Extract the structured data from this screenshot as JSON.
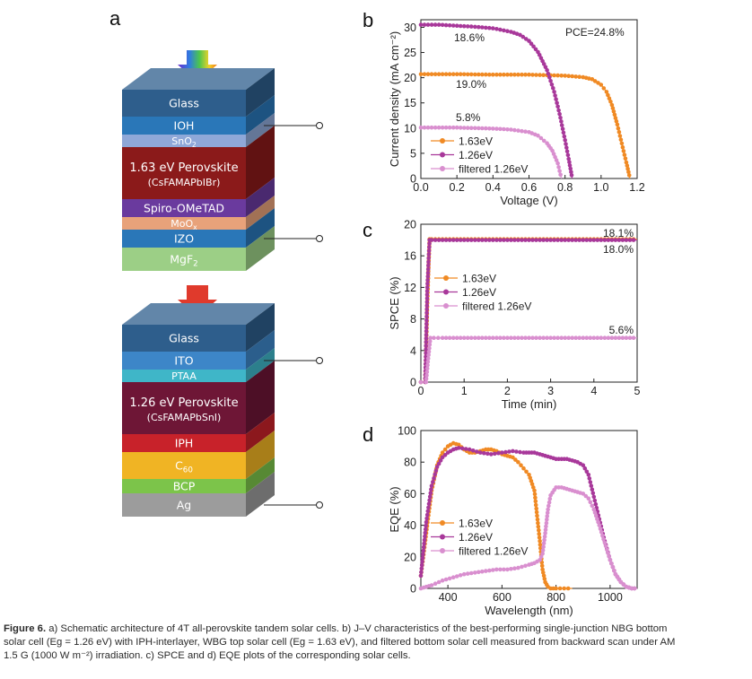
{
  "panels": {
    "a": "a",
    "b": "b",
    "c": "c",
    "d": "d"
  },
  "schematic": {
    "top_stack": [
      {
        "label": "Glass",
        "color": "#2e5e8c"
      },
      {
        "label": "IOH",
        "color": "#2a77b8"
      },
      {
        "label": "SnO",
        "sub": "2",
        "color": "#8fa8d8"
      },
      {
        "label": "1.63 eV Perovskite",
        "label2": "(CsFAMAPbIBr)",
        "color": "#8b1a1a"
      },
      {
        "label": "Spiro-OMeTAD",
        "color": "#6a3a9e"
      },
      {
        "label": "MoO",
        "sub": "x",
        "color": "#e8a27a"
      },
      {
        "label": "IZO",
        "color": "#2a77b8"
      },
      {
        "label": "MgF",
        "sub": "2",
        "color": "#9ccf86"
      }
    ],
    "bottom_stack": [
      {
        "label": "Glass",
        "color": "#2e5e8c"
      },
      {
        "label": "ITO",
        "color": "#3d86c8"
      },
      {
        "label": "PTAA",
        "color": "#3fb6c8"
      },
      {
        "label": "1.26 eV Perovskite",
        "label2": "(CsFAMAPbSnI)",
        "color": "#6e1636"
      },
      {
        "label": "IPH",
        "color": "#c8222a"
      },
      {
        "label": "C",
        "sub": "60",
        "color": "#f0b424"
      },
      {
        "label": "BCP",
        "color": "#7cc44a"
      },
      {
        "label": "Ag",
        "color": "#9c9c9c"
      }
    ]
  },
  "chart_data": [
    {
      "panel": "b",
      "type": "line",
      "xlabel": "Voltage (V)",
      "ylabel": "Current density (mA cm⁻²)",
      "xlim": [
        0.0,
        1.2
      ],
      "ylim": [
        0,
        31.5
      ],
      "xticks": [
        "0.0",
        "0.2",
        "0.4",
        "0.6",
        "0.8",
        "1.0",
        "1.2"
      ],
      "yticks": [
        "0",
        "5",
        "10",
        "15",
        "20",
        "25",
        "30"
      ],
      "annotations": [
        "PCE=24.8%",
        "18.6%",
        "19.0%",
        "5.8%"
      ],
      "series": [
        {
          "name": "1.63eV",
          "color": "#f08a24",
          "x": [
            0.0,
            0.2,
            0.4,
            0.6,
            0.8,
            0.9,
            0.95,
            1.0,
            1.03,
            1.06,
            1.09,
            1.12,
            1.14,
            1.16
          ],
          "y": [
            20.7,
            20.7,
            20.6,
            20.6,
            20.4,
            20.1,
            19.7,
            18.6,
            17.2,
            14.6,
            10.7,
            6.2,
            3.2,
            0.0
          ]
        },
        {
          "name": "1.26eV",
          "color": "#a8389a",
          "x": [
            0.0,
            0.1,
            0.2,
            0.3,
            0.4,
            0.5,
            0.55,
            0.6,
            0.65,
            0.7,
            0.74,
            0.77,
            0.8,
            0.82,
            0.84
          ],
          "y": [
            30.5,
            30.5,
            30.3,
            30.1,
            29.8,
            29.1,
            28.5,
            27.3,
            25.1,
            21.5,
            17.2,
            12.8,
            7.6,
            3.9,
            0.0
          ]
        },
        {
          "name": "filtered 1.26eV",
          "color": "#d98fcf",
          "x": [
            0.0,
            0.2,
            0.4,
            0.5,
            0.6,
            0.65,
            0.7,
            0.73,
            0.76,
            0.78
          ],
          "y": [
            10.1,
            10.1,
            9.9,
            9.7,
            9.2,
            8.5,
            7.0,
            5.5,
            3.0,
            0.0
          ]
        }
      ]
    },
    {
      "panel": "c",
      "type": "line",
      "xlabel": "Time (min)",
      "ylabel": "SPCE (%)",
      "xlim": [
        0,
        5
      ],
      "ylim": [
        0,
        20
      ],
      "xticks": [
        "0",
        "1",
        "2",
        "3",
        "4",
        "5"
      ],
      "yticks": [
        "0",
        "4",
        "8",
        "12",
        "16",
        "20"
      ],
      "annotations": [
        "18.1%",
        "18.0%",
        "5.6%"
      ],
      "series": [
        {
          "name": "1.63eV",
          "color": "#f08a24",
          "x": [
            0.0,
            0.1,
            0.15,
            0.2,
            0.25,
            0.5,
            1,
            2,
            3,
            4,
            5
          ],
          "y": [
            0,
            0,
            10,
            18.1,
            18.1,
            18.1,
            18.1,
            18.1,
            18.1,
            18.1,
            18.1
          ]
        },
        {
          "name": "1.26eV",
          "color": "#a8389a",
          "x": [
            0.0,
            0.1,
            0.15,
            0.2,
            0.25,
            0.5,
            1,
            2,
            3,
            4,
            5
          ],
          "y": [
            0,
            0,
            12,
            18.0,
            18.0,
            18.0,
            18.0,
            18.0,
            18.0,
            18.0,
            18.0
          ]
        },
        {
          "name": "filtered 1.26eV",
          "color": "#d98fcf",
          "x": [
            0.0,
            0.12,
            0.17,
            0.22,
            0.3,
            0.5,
            1,
            2,
            3,
            4,
            5
          ],
          "y": [
            0,
            0,
            3,
            5.6,
            5.6,
            5.6,
            5.6,
            5.6,
            5.6,
            5.6,
            5.6
          ]
        }
      ]
    },
    {
      "panel": "d",
      "type": "line",
      "xlabel": "Wavelength (nm)",
      "ylabel": "EQE (%)",
      "xlim": [
        300,
        1100
      ],
      "ylim": [
        0,
        100
      ],
      "xticks": [
        "400",
        "600",
        "800",
        "1000"
      ],
      "yticks": [
        "0",
        "20",
        "40",
        "60",
        "80",
        "100"
      ],
      "series": [
        {
          "name": "1.63eV",
          "color": "#f08a24",
          "x": [
            300,
            320,
            340,
            360,
            380,
            400,
            420,
            440,
            460,
            480,
            500,
            520,
            540,
            560,
            580,
            600,
            620,
            640,
            660,
            680,
            700,
            720,
            740,
            750,
            760,
            770,
            780,
            800,
            830,
            860
          ],
          "y": [
            8,
            35,
            62,
            78,
            86,
            90,
            92,
            91,
            88,
            86,
            86,
            87,
            88,
            88,
            87,
            85,
            84,
            83,
            80,
            76,
            72,
            62,
            30,
            12,
            4,
            1,
            0,
            0,
            0,
            0
          ]
        },
        {
          "name": "1.26eV",
          "color": "#a8389a",
          "x": [
            300,
            320,
            340,
            360,
            380,
            400,
            420,
            440,
            480,
            520,
            560,
            600,
            640,
            680,
            700,
            720,
            740,
            760,
            780,
            800,
            820,
            840,
            860,
            880,
            900,
            920,
            940,
            960,
            980,
            1000,
            1020,
            1040,
            1060,
            1080,
            1100
          ],
          "y": [
            8,
            42,
            65,
            77,
            83,
            86,
            88,
            89,
            88,
            86,
            85,
            86,
            87,
            86,
            86,
            86,
            85,
            84,
            83,
            82,
            82,
            82,
            81,
            80,
            78,
            72,
            58,
            44,
            30,
            18,
            9,
            4,
            1,
            0,
            0
          ]
        },
        {
          "name": "filtered 1.26eV",
          "color": "#d98fcf",
          "x": [
            300,
            320,
            340,
            380,
            420,
            460,
            500,
            540,
            580,
            620,
            660,
            700,
            720,
            740,
            750,
            760,
            770,
            780,
            800,
            820,
            840,
            860,
            880,
            900,
            920,
            940,
            960,
            980,
            1000,
            1020,
            1040,
            1060,
            1080,
            1100
          ],
          "y": [
            0,
            1,
            2,
            5,
            7,
            9,
            10,
            11,
            12,
            12,
            13,
            15,
            16,
            18,
            22,
            35,
            50,
            59,
            64,
            64,
            63,
            62,
            61,
            60,
            57,
            50,
            40,
            29,
            18,
            9,
            4,
            1,
            0,
            0
          ]
        }
      ]
    }
  ],
  "caption": {
    "figure_label": "Figure 6.",
    "line1": " a) Schematic architecture of 4T all-perovskite tandem solar cells. b) J–V characteristics of the best-performing single-junction NBG bottom",
    "line2": "solar cell (Eg = 1.26 eV) with IPH-interlayer, WBG top solar cell (Eg = 1.63 eV), and filtered bottom solar cell measured from backward scan under AM",
    "line3": "1.5 G (1000 W m⁻²) irradiation. c) SPCE and d) EQE plots of the corresponding solar cells."
  }
}
